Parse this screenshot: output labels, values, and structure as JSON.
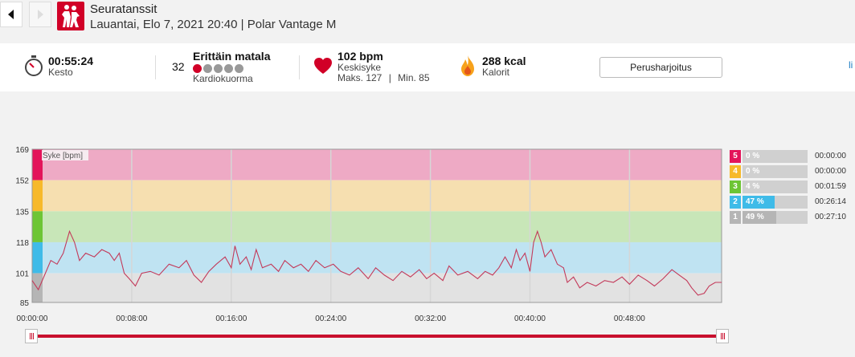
{
  "header": {
    "title": "Seuratanssit",
    "subtitle": "Lauantai, Elo 7, 2021 20:40 | Polar Vantage M",
    "prev_icon": "chevron-left-icon",
    "next_icon": "chevron-right-icon",
    "activity_icon": "dancing-couple-icon"
  },
  "summary": {
    "duration": {
      "value": "00:55:24",
      "label": "Kesto",
      "icon": "stopwatch-icon"
    },
    "cardio": {
      "value": "32",
      "title": "Erittäin matala",
      "label": "Kardiokuorma",
      "dots_filled": 1,
      "dots_total": 5
    },
    "heart": {
      "value": "102 bpm",
      "label": "Keskisyke",
      "max_label": "Maks. 127",
      "sep": "|",
      "min_label": "Min. 85",
      "icon": "heart-icon"
    },
    "calories": {
      "value": "288 kcal",
      "label": "Kalorit",
      "icon": "flame-icon"
    },
    "training_button": "Perusharjoitus",
    "edge_link": "li"
  },
  "colors": {
    "brand": "#d10027",
    "zone5": "#e3145a",
    "zone4": "#f7b92a",
    "zone3": "#6dc535",
    "zone2": "#3fbbe8",
    "zone1": "#b5b5b5",
    "line": "#c33a5a"
  },
  "chart_data": {
    "type": "line",
    "series_label": "Syke [bpm]",
    "y_ticks": [
      169,
      152,
      135,
      118,
      101,
      85
    ],
    "ylim": [
      85,
      169
    ],
    "xlim_minutes": [
      0,
      55.4
    ],
    "x_ticks": [
      "00:00:00",
      "00:08:00",
      "00:16:00",
      "00:24:00",
      "00:32:00",
      "00:40:00",
      "00:48:00"
    ],
    "zone_bounds": [
      [
        152,
        169
      ],
      [
        135,
        152
      ],
      [
        118,
        135
      ],
      [
        101,
        118
      ],
      [
        85,
        101
      ]
    ],
    "hr_points": [
      [
        0,
        97
      ],
      [
        0.5,
        92
      ],
      [
        1,
        100
      ],
      [
        1.5,
        108
      ],
      [
        2,
        106
      ],
      [
        2.5,
        112
      ],
      [
        3,
        124
      ],
      [
        3.4,
        118
      ],
      [
        3.8,
        108
      ],
      [
        4.3,
        112
      ],
      [
        5,
        110
      ],
      [
        5.6,
        114
      ],
      [
        6.2,
        112
      ],
      [
        6.6,
        108
      ],
      [
        7,
        112
      ],
      [
        7.4,
        101
      ],
      [
        7.8,
        98
      ],
      [
        8.3,
        94
      ],
      [
        8.8,
        101
      ],
      [
        9.5,
        102
      ],
      [
        10.2,
        100
      ],
      [
        11,
        106
      ],
      [
        11.8,
        104
      ],
      [
        12.4,
        108
      ],
      [
        13,
        100
      ],
      [
        13.6,
        96
      ],
      [
        14.2,
        102
      ],
      [
        14.8,
        106
      ],
      [
        15.5,
        110
      ],
      [
        16,
        104
      ],
      [
        16.3,
        116
      ],
      [
        16.7,
        106
      ],
      [
        17.2,
        110
      ],
      [
        17.6,
        103
      ],
      [
        18,
        114
      ],
      [
        18.5,
        104
      ],
      [
        19.2,
        106
      ],
      [
        19.8,
        102
      ],
      [
        20.3,
        108
      ],
      [
        21,
        104
      ],
      [
        21.6,
        106
      ],
      [
        22.2,
        102
      ],
      [
        22.8,
        108
      ],
      [
        23.5,
        104
      ],
      [
        24.2,
        106
      ],
      [
        24.8,
        102
      ],
      [
        25.5,
        100
      ],
      [
        26.2,
        104
      ],
      [
        27,
        98
      ],
      [
        27.6,
        104
      ],
      [
        28.3,
        100
      ],
      [
        29,
        97
      ],
      [
        29.7,
        102
      ],
      [
        30.4,
        99
      ],
      [
        31.1,
        103
      ],
      [
        31.7,
        98
      ],
      [
        32.3,
        101
      ],
      [
        33,
        97
      ],
      [
        33.5,
        105
      ],
      [
        34.2,
        100
      ],
      [
        35,
        102
      ],
      [
        35.8,
        98
      ],
      [
        36.4,
        102
      ],
      [
        37,
        100
      ],
      [
        37.5,
        104
      ],
      [
        38,
        110
      ],
      [
        38.5,
        104
      ],
      [
        38.9,
        114
      ],
      [
        39.2,
        108
      ],
      [
        39.6,
        112
      ],
      [
        40,
        102
      ],
      [
        40.3,
        118
      ],
      [
        40.6,
        124
      ],
      [
        40.9,
        118
      ],
      [
        41.2,
        110
      ],
      [
        41.7,
        114
      ],
      [
        42.2,
        106
      ],
      [
        42.7,
        104
      ],
      [
        43,
        96
      ],
      [
        43.5,
        99
      ],
      [
        44,
        93
      ],
      [
        44.6,
        96
      ],
      [
        45.3,
        94
      ],
      [
        46,
        97
      ],
      [
        46.7,
        96
      ],
      [
        47.4,
        99
      ],
      [
        48,
        95
      ],
      [
        48.7,
        100
      ],
      [
        49.4,
        97
      ],
      [
        50,
        94
      ],
      [
        50.7,
        98
      ],
      [
        51.4,
        103
      ],
      [
        52,
        100
      ],
      [
        52.6,
        97
      ],
      [
        53,
        93
      ],
      [
        53.5,
        89
      ],
      [
        54,
        90
      ],
      [
        54.4,
        94
      ],
      [
        54.9,
        96
      ],
      [
        55.4,
        96
      ]
    ],
    "zones_table": [
      {
        "zone": "5",
        "percent": "0 %",
        "fraction": 0.0,
        "time": "00:00:00"
      },
      {
        "zone": "4",
        "percent": "0 %",
        "fraction": 0.0,
        "time": "00:00:00"
      },
      {
        "zone": "3",
        "percent": "4 %",
        "fraction": 0.04,
        "time": "00:01:59"
      },
      {
        "zone": "2",
        "percent": "47 %",
        "fraction": 0.47,
        "time": "00:26:14"
      },
      {
        "zone": "1",
        "percent": "49 %",
        "fraction": 0.49,
        "time": "00:27:10"
      }
    ]
  },
  "slider": {
    "start_handle": "range-start-handle",
    "end_handle": "range-end-handle"
  }
}
